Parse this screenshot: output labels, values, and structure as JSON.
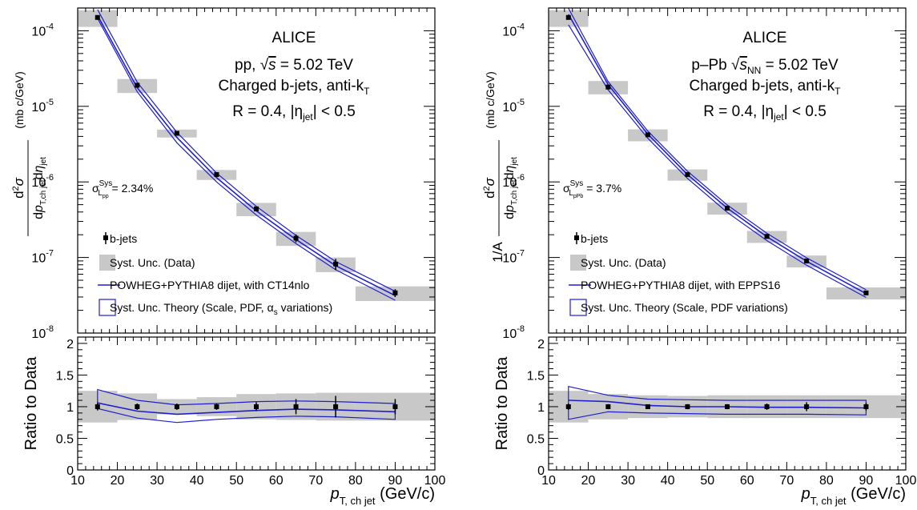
{
  "chart_data": [
    {
      "type": "scatter",
      "experiment": "ALICE",
      "system_label": "pp, ",
      "energy_symbol": "s",
      "energy_value": " = 5.02 TeV",
      "jet_label": "Charged b-jets, anti-k",
      "jet_sub": "T",
      "radius_label": "R = 0.4, |η",
      "radius_sub": "jet",
      "radius_tail": "| < 0.5",
      "lumi_unc_label": "σ",
      "lumi_unc_sup": "Sys",
      "lumi_unc_sub": "L",
      "lumi_unc_subsub": "pp",
      "lumi_unc_value": "= 2.34%",
      "ylabel_unit": "(mb c/GeV)",
      "ylabel_prefix": "",
      "ratio_ylabel": "Ratio to Data",
      "xlabel": "p",
      "xlabel_sub": "T, ch jet",
      "xlabel_unit": "(GeV/c)",
      "xlim": [
        10,
        100
      ],
      "ylim": [
        1e-08,
        0.0002
      ],
      "yscale": "log",
      "ratio_ylim": [
        0,
        2.1
      ],
      "x_ticks": [
        "10",
        "20",
        "30",
        "40",
        "50",
        "60",
        "70",
        "80",
        "90",
        "100"
      ],
      "ratio_ticks": [
        "0",
        "0.5",
        "1",
        "1.5",
        "2"
      ],
      "y_tick_labels": [
        "10",
        "10",
        "10",
        "10",
        "10"
      ],
      "y_tick_exponents": [
        "-8",
        "-7",
        "-6",
        "-5",
        "-4"
      ],
      "legend": [
        "b-jets",
        "Syst. Unc. (Data)",
        "POWHEG+PYTHIA8 dijet, with CT14nlo",
        "Syst. Unc. Theory (Scale, PDF, α",
        "s",
        " variations)"
      ],
      "series": {
        "data": {
          "x": [
            15,
            25,
            35,
            45,
            55,
            65,
            75,
            90
          ],
          "y": [
            0.00015,
            1.9e-05,
            4.4e-06,
            1.25e-06,
            4.4e-07,
            1.8e-07,
            8.2e-08,
            3.4e-08
          ],
          "stat_rel": [
            0.06,
            0.05,
            0.05,
            0.05,
            0.07,
            0.12,
            0.17,
            0.12
          ],
          "bins": [
            [
              10,
              20
            ],
            [
              20,
              30
            ],
            [
              30,
              40
            ],
            [
              40,
              50
            ],
            [
              50,
              60
            ],
            [
              60,
              70
            ],
            [
              70,
              80
            ],
            [
              80,
              100
            ]
          ],
          "sys_rel": [
            0.25,
            0.21,
            0.12,
            0.15,
            0.2,
            0.21,
            0.22,
            0.22
          ]
        },
        "theory": {
          "x": [
            15,
            25,
            35,
            45,
            55,
            65,
            75,
            90
          ],
          "center": [
            1.06,
            0.93,
            0.88,
            0.91,
            0.94,
            0.96,
            0.95,
            0.92
          ],
          "upper": [
            1.27,
            1.1,
            1.03,
            1.05,
            1.08,
            1.09,
            1.08,
            1.05
          ],
          "lower": [
            0.97,
            0.82,
            0.75,
            0.8,
            0.83,
            0.85,
            0.84,
            0.8
          ]
        }
      }
    },
    {
      "type": "scatter",
      "experiment": "ALICE",
      "system_label": "p–Pb ",
      "energy_symbol": "s",
      "energy_value": " = 5.02 TeV",
      "energy_sub": "NN",
      "jet_label": "Charged b-jets, anti-k",
      "jet_sub": "T",
      "radius_label": "R = 0.4, |η",
      "radius_sub": "jet",
      "radius_tail": "| < 0.5",
      "lumi_unc_label": "σ",
      "lumi_unc_sup": "Sys",
      "lumi_unc_sub": "L",
      "lumi_unc_subsub": "pPb",
      "lumi_unc_value": "= 3.7%",
      "ylabel_unit": "(mb c/GeV)",
      "ylabel_prefix": "1/A",
      "ratio_ylabel": "Ratio to Data",
      "xlabel": "p",
      "xlabel_sub": "T, ch jet",
      "xlabel_unit": "(GeV/c)",
      "xlim": [
        10,
        100
      ],
      "ylim": [
        1e-08,
        0.0002
      ],
      "yscale": "log",
      "ratio_ylim": [
        0,
        2.1
      ],
      "x_ticks": [
        "10",
        "20",
        "30",
        "40",
        "50",
        "60",
        "70",
        "80",
        "90",
        "100"
      ],
      "ratio_ticks": [
        "0",
        "0.5",
        "1",
        "1.5",
        "2"
      ],
      "y_tick_labels": [
        "10",
        "10",
        "10",
        "10",
        "10"
      ],
      "y_tick_exponents": [
        "-8",
        "-7",
        "-6",
        "-5",
        "-4"
      ],
      "legend": [
        "b-jets",
        "Syst. Unc. (Data)",
        "POWHEG+PYTHIA8 dijet, with EPPS16",
        "Syst. Unc. Theory (Scale, PDF variations)",
        "",
        ""
      ],
      "series": {
        "data": {
          "x": [
            15,
            25,
            35,
            45,
            55,
            65,
            75,
            90
          ],
          "y": [
            0.00015,
            1.8e-05,
            4.2e-06,
            1.25e-06,
            4.5e-07,
            1.9e-07,
            9e-08,
            3.4e-08
          ],
          "stat_rel": [
            0.05,
            0.04,
            0.03,
            0.04,
            0.04,
            0.05,
            0.07,
            0.06
          ],
          "bins": [
            [
              10,
              20
            ],
            [
              20,
              30
            ],
            [
              30,
              40
            ],
            [
              40,
              50
            ],
            [
              50,
              60
            ],
            [
              60,
              70
            ],
            [
              70,
              80
            ],
            [
              80,
              100
            ]
          ],
          "sys_rel": [
            0.25,
            0.2,
            0.18,
            0.17,
            0.18,
            0.18,
            0.18,
            0.18
          ]
        },
        "theory": {
          "x": [
            15,
            25,
            35,
            45,
            55,
            65,
            75,
            90
          ],
          "center": [
            1.1,
            1.08,
            1.02,
            1.0,
            1.0,
            0.99,
            0.99,
            0.98
          ],
          "upper": [
            1.32,
            1.18,
            1.12,
            1.11,
            1.1,
            1.1,
            1.1,
            1.1
          ],
          "lower": [
            0.8,
            0.92,
            0.9,
            0.89,
            0.88,
            0.88,
            0.88,
            0.87
          ]
        }
      }
    }
  ]
}
